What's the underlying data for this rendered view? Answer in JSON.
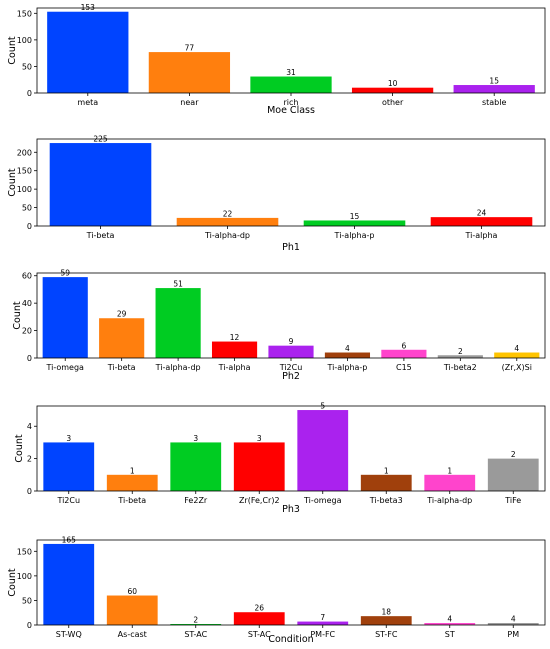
{
  "chart_data": [
    {
      "type": "bar",
      "xlabel": "Moe Class",
      "ylabel": "Count",
      "ylim": [
        0,
        160
      ],
      "yticks": [
        0,
        50,
        100,
        150
      ],
      "categories": [
        "meta",
        "near",
        "rich",
        "other",
        "stable"
      ],
      "values": [
        153,
        77,
        31,
        10,
        15
      ],
      "colors": [
        "#0044ff",
        "#ff7f0e",
        "#00cc22",
        "#ff0000",
        "#aa22ee"
      ]
    },
    {
      "type": "bar",
      "xlabel": "Ph1",
      "ylabel": "Count",
      "ylim": [
        0,
        236
      ],
      "yticks": [
        0,
        50,
        100,
        150,
        200
      ],
      "categories": [
        "Ti-beta",
        "Ti-alpha-dp",
        "Ti-alpha-p",
        "Ti-alpha"
      ],
      "values": [
        225,
        22,
        15,
        24
      ],
      "colors": [
        "#0044ff",
        "#ff7f0e",
        "#00cc22",
        "#ff0000"
      ]
    },
    {
      "type": "bar",
      "xlabel": "Ph2",
      "ylabel": "Count",
      "ylim": [
        0,
        62
      ],
      "yticks": [
        0,
        20,
        40,
        60
      ],
      "categories": [
        "Ti-omega",
        "Ti-beta",
        "Ti-alpha-dp",
        "Ti-alpha",
        "Ti2Cu",
        "Ti-alpha-p",
        "C15",
        "Ti-beta2",
        "(Zr,X)Si"
      ],
      "values": [
        59,
        29,
        51,
        12,
        9,
        4,
        6,
        2,
        4
      ],
      "colors": [
        "#0044ff",
        "#ff7f0e",
        "#00cc22",
        "#ff0000",
        "#aa22ee",
        "#a0400c",
        "#ff44cc",
        "#9a9a9a",
        "#ffc400"
      ]
    },
    {
      "type": "bar",
      "xlabel": "Ph3",
      "ylabel": "Count",
      "ylim": [
        0,
        5.25
      ],
      "yticks": [
        0,
        2,
        4
      ],
      "categories": [
        "Ti2Cu",
        "Ti-beta",
        "Fe2Zr",
        "Zr(Fe,Cr)2",
        "Ti-omega",
        "Ti-beta3",
        "Ti-alpha-dp",
        "TiFe"
      ],
      "values": [
        3,
        1,
        3,
        3,
        5,
        1,
        1,
        2
      ],
      "colors": [
        "#0044ff",
        "#ff7f0e",
        "#00cc22",
        "#ff0000",
        "#aa22ee",
        "#a0400c",
        "#ff44cc",
        "#9a9a9a"
      ]
    },
    {
      "type": "bar",
      "xlabel": "Condition",
      "ylabel": "Count",
      "ylim": [
        0,
        173
      ],
      "yticks": [
        0,
        50,
        100,
        150
      ],
      "categories": [
        "ST-WQ",
        "As-cast",
        "ST-AC",
        "ST-AC",
        "PM-FC",
        "ST-FC",
        "ST",
        "PM"
      ],
      "values": [
        165,
        60,
        2,
        26,
        7,
        18,
        4,
        4
      ],
      "colors": [
        "#0044ff",
        "#ff7f0e",
        "#00cc22",
        "#ff0000",
        "#aa22ee",
        "#a0400c",
        "#ff44cc",
        "#9a9a9a"
      ]
    }
  ]
}
